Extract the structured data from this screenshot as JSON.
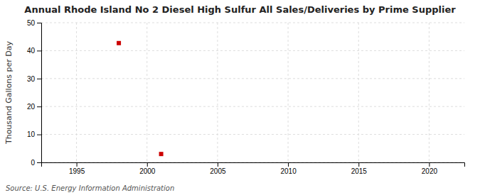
{
  "chart_data": {
    "type": "scatter",
    "title": "Annual Rhode Island No 2 Diesel High Sulfur All Sales/Deliveries by Prime Supplier",
    "ylabel": "Thousand Gallons per Day",
    "source": "Source: U.S. Energy Information Administration",
    "x": [
      1998,
      2001
    ],
    "values": [
      42.7,
      3.0
    ],
    "color": "#cc0000",
    "marker": "square",
    "xlim": [
      1992.5,
      2022.5
    ],
    "xticks": [
      1995,
      2000,
      2005,
      2010,
      2015,
      2020
    ],
    "ylim": [
      0,
      50
    ],
    "yticks": [
      0,
      10,
      20,
      30,
      40,
      50
    ],
    "grid": true
  }
}
